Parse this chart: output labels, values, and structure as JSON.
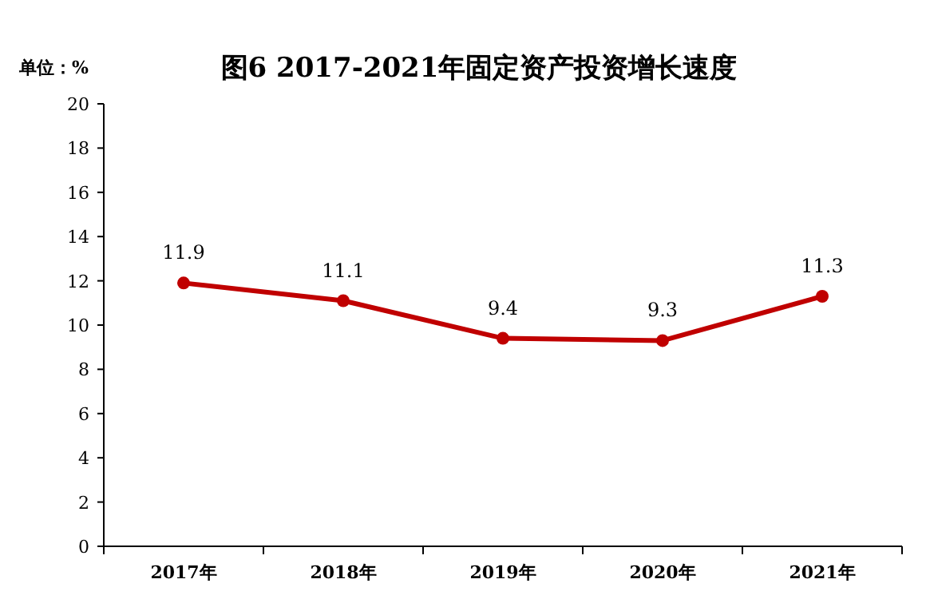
{
  "chart_data": {
    "type": "line",
    "title": "图6 2017-2021年固定资产投资增长速度",
    "ylabel": "单位：%",
    "categories": [
      "2017年",
      "2018年",
      "2019年",
      "2020年",
      "2021年"
    ],
    "series": [
      {
        "color": "#c00000",
        "values": [
          11.9,
          11.1,
          9.4,
          9.3,
          11.3
        ]
      }
    ],
    "ylim": [
      0,
      20
    ],
    "yticks": [
      0,
      2,
      4,
      6,
      8,
      10,
      12,
      14,
      16,
      18,
      20
    ],
    "data_labels": true,
    "marker": "circle",
    "line_style": "solid",
    "grid": false
  }
}
